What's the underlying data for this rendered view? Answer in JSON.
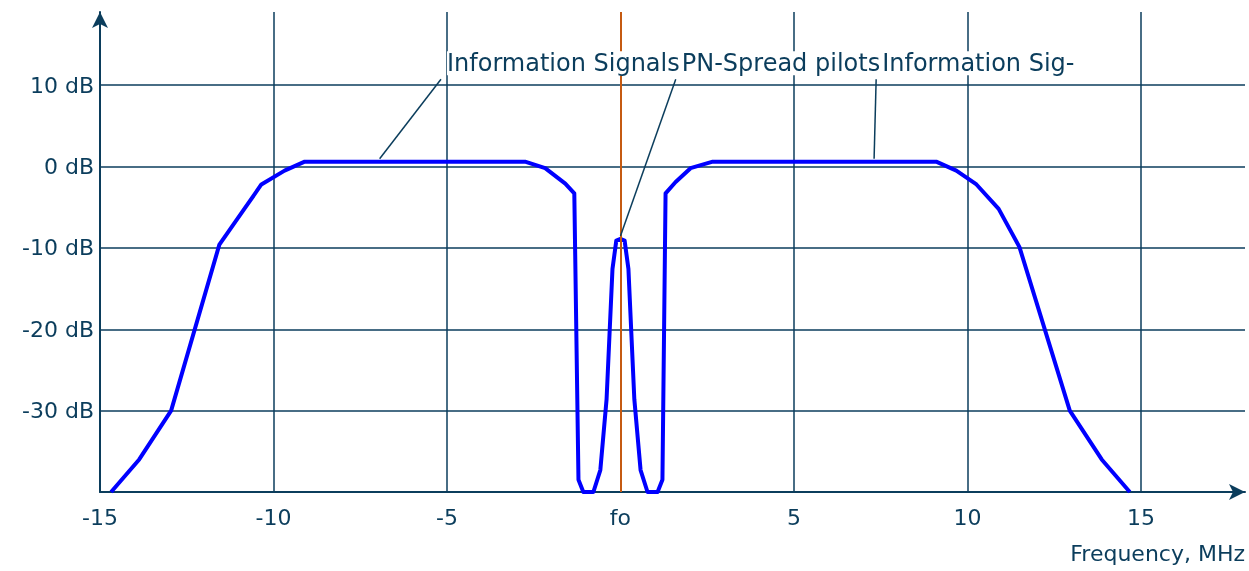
{
  "chart_data": {
    "type": "line",
    "xlabel": "Frequency, MHz",
    "x": [
      -14.68,
      -13.87,
      -12.95,
      -11.56,
      -10.84,
      -10.35,
      -9.68,
      -9.1,
      -2.75,
      -2.17,
      -1.59,
      -1.33,
      -1.21,
      -1.07,
      -0.78,
      -0.58,
      -0.4,
      -0.23,
      -0.12,
      0,
      0.12,
      0.23,
      0.4,
      0.58,
      0.78,
      1.07,
      1.21,
      1.3,
      1.59,
      2.02,
      2.66,
      9.1,
      9.68,
      10.26,
      10.9,
      11.5,
      12.95,
      13.87,
      14.68
    ],
    "series": [
      {
        "color": "#0000ff",
        "values": [
          -40,
          -36,
          -30,
          -9.6,
          -5.2,
          -2.2,
          -0.5,
          0.6,
          0.6,
          -0.2,
          -2.1,
          -3.3,
          -38.5,
          -40,
          -40,
          -37.3,
          -28.6,
          -12.6,
          -9.1,
          -8.9,
          -9.1,
          -12.6,
          -28.6,
          -37.3,
          -40,
          -40,
          -38.5,
          -3.3,
          -1.9,
          -0.2,
          0.6,
          0.6,
          -0.5,
          -2.2,
          -5.2,
          -9.9,
          -30,
          -36,
          -40
        ]
      }
    ],
    "xlim": [
      -15,
      18
    ],
    "xticks": [
      -15,
      -10,
      -5,
      {
        "value": 0,
        "label": "fo"
      },
      5,
      10,
      15
    ],
    "ylim": [
      -40,
      19
    ],
    "yticks": [
      {
        "value": -40,
        "label": null
      },
      {
        "value": -30,
        "label": "-30 dB"
      },
      {
        "value": -20,
        "label": "-20 dB"
      },
      {
        "value": -10,
        "label": "-10 dB"
      },
      {
        "value": 0,
        "label": "0 dB"
      },
      {
        "value": 10,
        "label": "10 dB"
      }
    ],
    "grid": true,
    "marker": "none",
    "line_style": "solid",
    "ref_lines": [
      {
        "axis": "x",
        "value": 0,
        "color": "#c55a11"
      }
    ],
    "annotations": [
      {
        "text": "Information Signals",
        "x": -6.94,
        "y": 0.6
      },
      {
        "text": "PN-Spread pilots",
        "x": 0,
        "y": -8.9
      },
      {
        "text": "Information Sig-",
        "x": 7.31,
        "y": 0.6
      }
    ]
  }
}
